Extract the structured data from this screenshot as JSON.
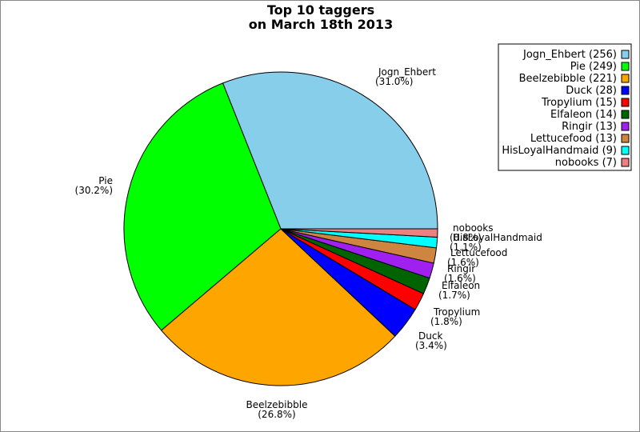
{
  "chart_data": {
    "type": "pie",
    "title": "Top 10 taggers",
    "subtitle": "on March 18th 2013",
    "legend_position": "top-right",
    "slices": [
      {
        "name": "Jogn_Ehbert",
        "value": 256,
        "percent_label": "(31.0%)",
        "legend_label": "Jogn_Ehbert (256)",
        "color": "#87CEEB"
      },
      {
        "name": "Pie",
        "value": 249,
        "percent_label": "(30.2%)",
        "legend_label": "Pie (249)",
        "color": "#00FF00"
      },
      {
        "name": "Beelzebibble",
        "value": 221,
        "percent_label": "(26.8%)",
        "legend_label": "Beelzebibble (221)",
        "color": "#FFA500"
      },
      {
        "name": "Duck",
        "value": 28,
        "percent_label": "(3.4%)",
        "legend_label": "Duck (28)",
        "color": "#0000FF"
      },
      {
        "name": "Tropylium",
        "value": 15,
        "percent_label": "(1.8%)",
        "legend_label": "Tropylium (15)",
        "color": "#FF0000"
      },
      {
        "name": "Elfaleon",
        "value": 14,
        "percent_label": "(1.7%)",
        "legend_label": "Elfaleon (14)",
        "color": "#006400"
      },
      {
        "name": "Ringir",
        "value": 13,
        "percent_label": "(1.6%)",
        "legend_label": "Ringir (13)",
        "color": "#A020F0"
      },
      {
        "name": "Lettucefood",
        "value": 13,
        "percent_label": "(1.6%)",
        "legend_label": "Lettucefood (13)",
        "color": "#CD853F"
      },
      {
        "name": "HisLoyalHandmaid",
        "value": 9,
        "percent_label": "(1.1%)",
        "legend_label": "HisLoyalHandmaid (9)",
        "color": "#00FFFF"
      },
      {
        "name": "nobooks",
        "value": 7,
        "percent_label": "(0.8%)",
        "legend_label": "nobooks (7)",
        "color": "#F08080"
      }
    ]
  }
}
